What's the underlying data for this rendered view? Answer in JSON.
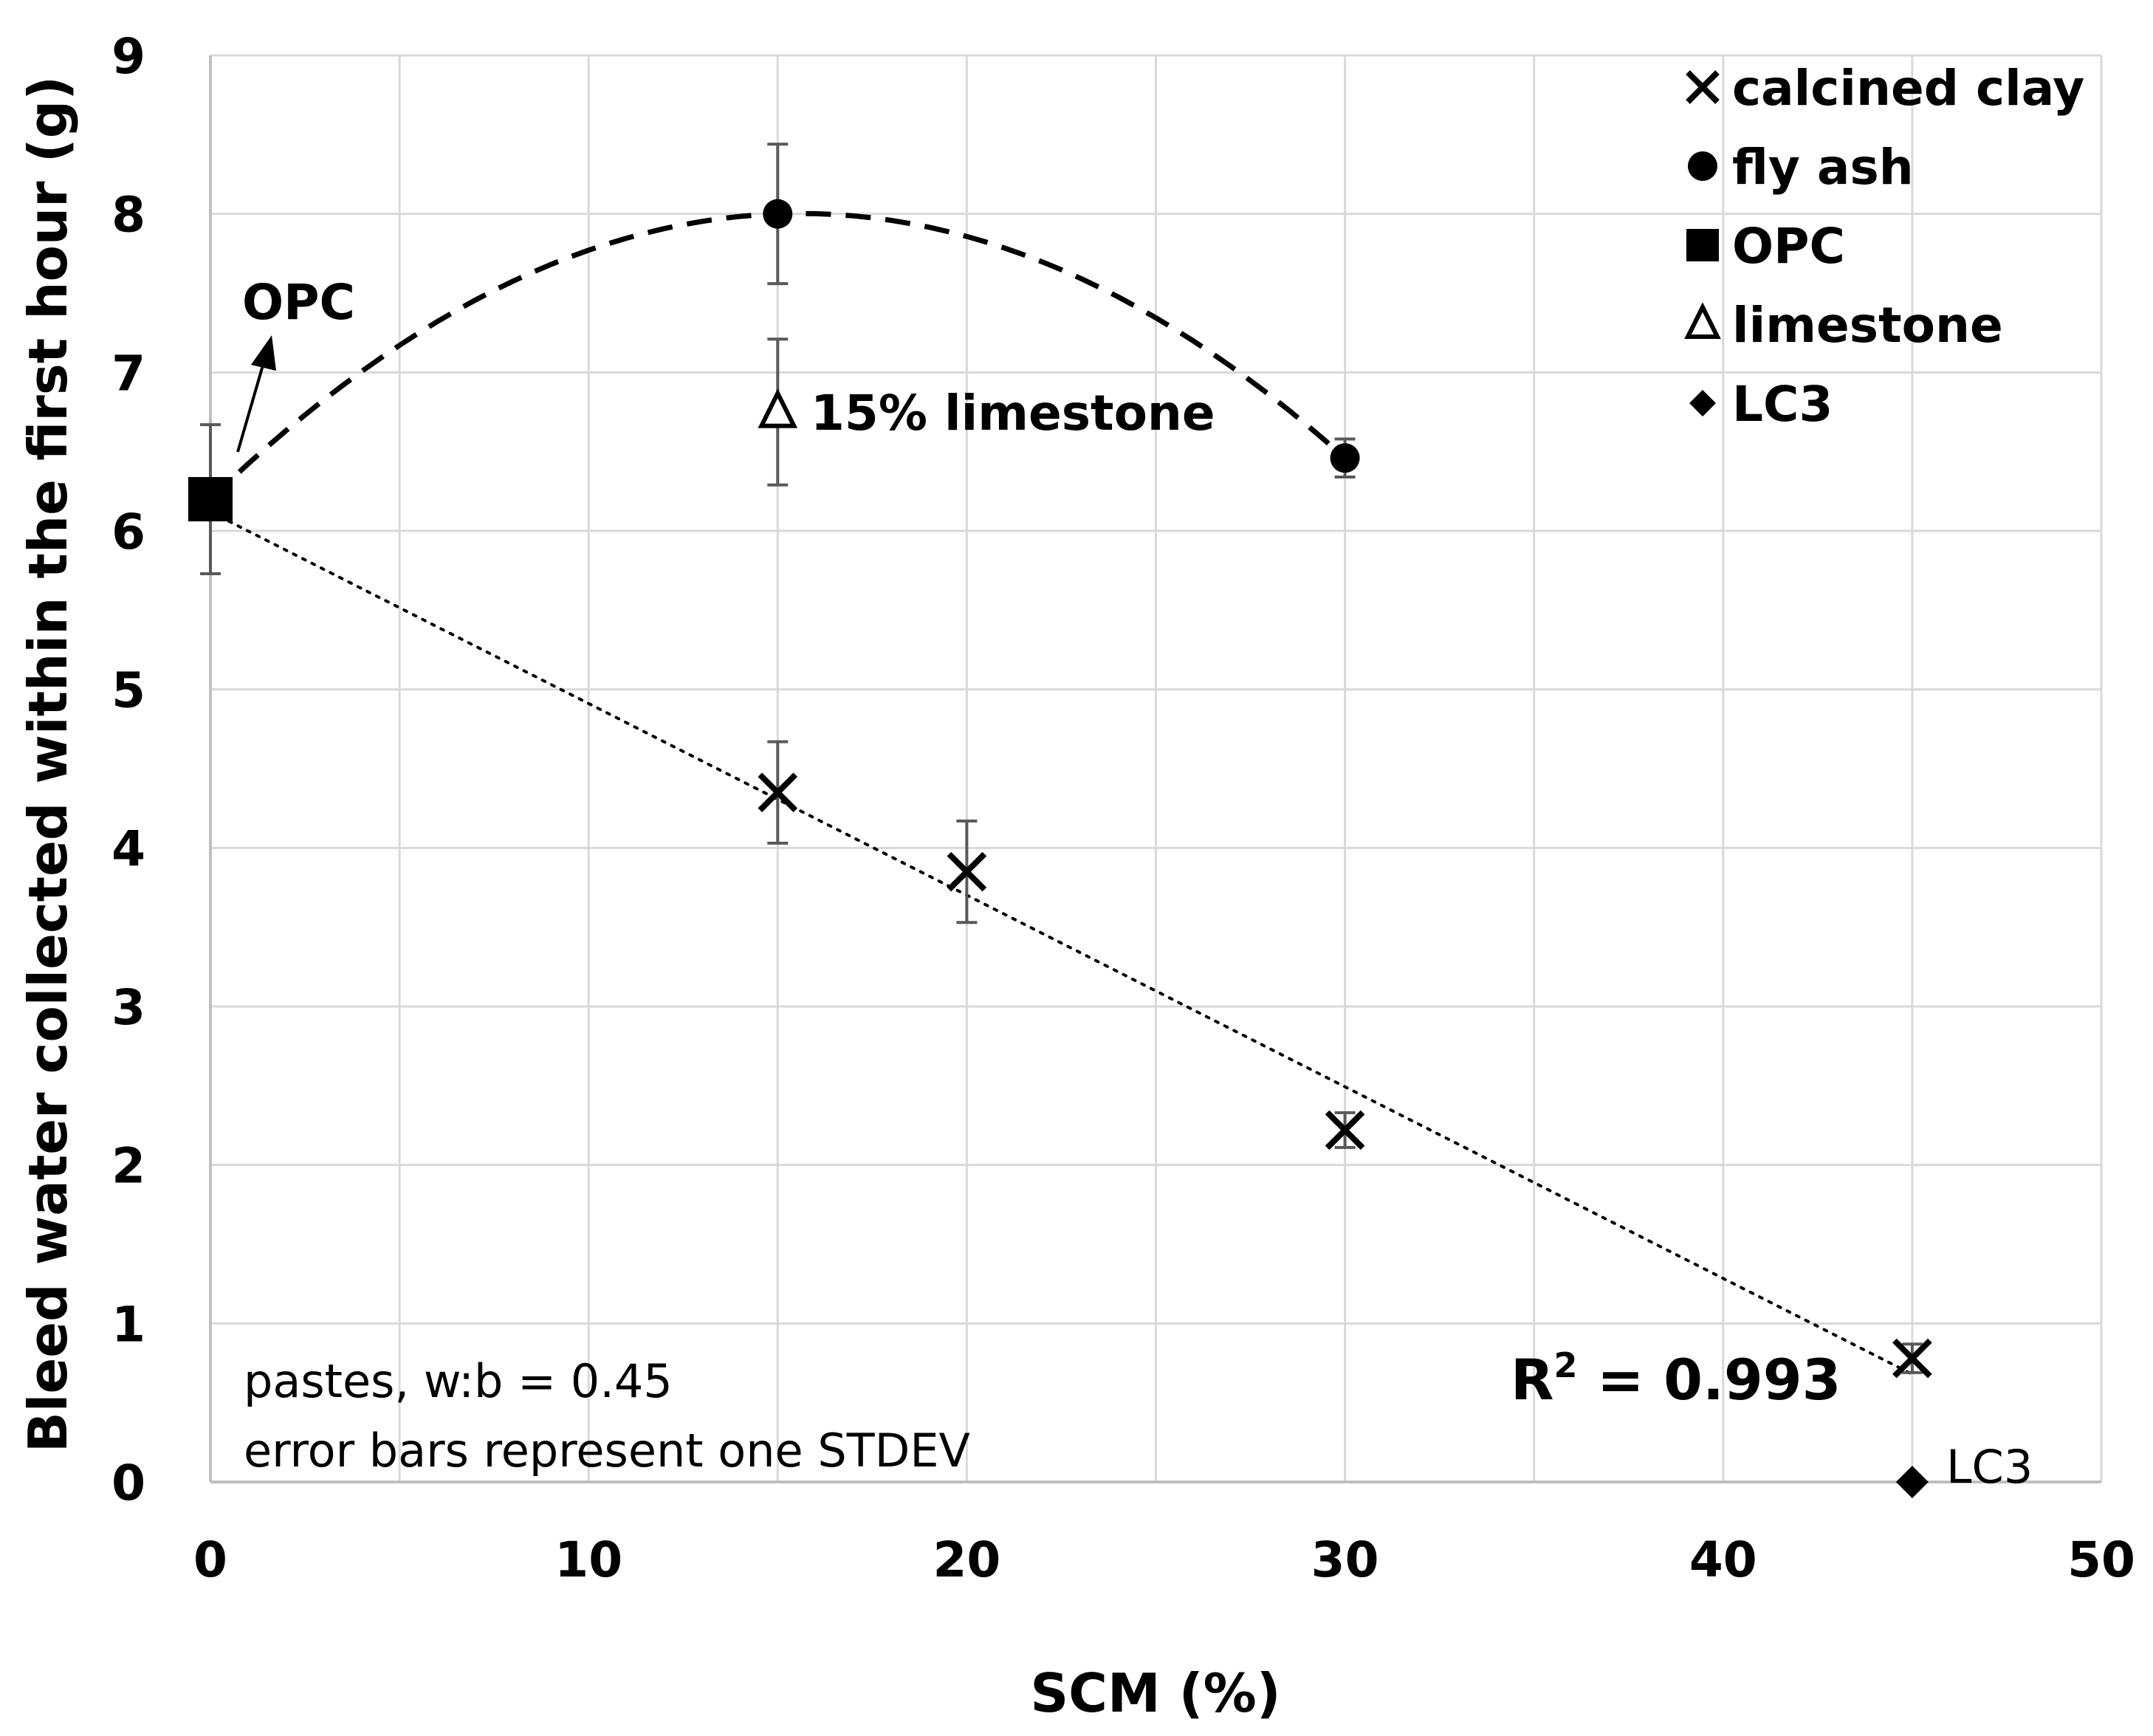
{
  "chart_data": {
    "type": "scatter",
    "title": "",
    "xlabel": "SCM (%)",
    "ylabel": "Bleed water collected within the first hour (g)",
    "xlim": [
      0,
      50
    ],
    "ylim": [
      0,
      9
    ],
    "xticks": [
      0,
      10,
      20,
      30,
      40,
      50
    ],
    "yticks": [
      0,
      1,
      2,
      3,
      4,
      5,
      6,
      7,
      8,
      9
    ],
    "grid": true,
    "legend_position": "top-right",
    "series": [
      {
        "name": "calcined clay",
        "marker": "x",
        "color": "#000000",
        "points": [
          {
            "x": 15,
            "y": 4.35,
            "err": 0.32
          },
          {
            "x": 20,
            "y": 3.85,
            "err": 0.32
          },
          {
            "x": 30,
            "y": 2.22,
            "err": 0.11
          },
          {
            "x": 45,
            "y": 0.78,
            "err": 0.09
          }
        ]
      },
      {
        "name": "fly ash",
        "marker": "circle",
        "color": "#000000",
        "points": [
          {
            "x": 15,
            "y": 8.0,
            "err": 0.44
          },
          {
            "x": 30,
            "y": 6.46,
            "err": 0.12
          }
        ]
      },
      {
        "name": "OPC",
        "marker": "square",
        "color": "#000000",
        "points": [
          {
            "x": 0,
            "y": 6.2,
            "err": 0.47
          }
        ]
      },
      {
        "name": "limestone",
        "marker": "triangle",
        "color": "#000000",
        "points": [
          {
            "x": 15,
            "y": 6.75,
            "err": 0.46
          }
        ]
      },
      {
        "name": "LC3",
        "marker": "diamond",
        "color": "#000000",
        "points": [
          {
            "x": 45,
            "y": 0.0,
            "err": 0
          }
        ]
      }
    ],
    "trendlines": [
      {
        "name": "calcined clay linear fit",
        "style": "dotted",
        "points": [
          {
            "x": 0,
            "y": 6.12
          },
          {
            "x": 45,
            "y": 0.68
          }
        ]
      },
      {
        "name": "fly ash polynomial fit",
        "style": "dashed",
        "points": [
          {
            "x": 0,
            "y": 6.2
          },
          {
            "x": 15,
            "y": 8.0
          },
          {
            "x": 30,
            "y": 6.46
          }
        ]
      }
    ],
    "annotations": {
      "opc_arrow_label": "OPC",
      "limestone_label": "15% limestone",
      "lc3_label": "LC3",
      "r_squared_prefix": "R",
      "r_squared_exp": "2",
      "r_squared_value": " = 0.993",
      "note_line1": "pastes, w:b = 0.45",
      "note_line2": "error bars represent one STDEV"
    }
  }
}
